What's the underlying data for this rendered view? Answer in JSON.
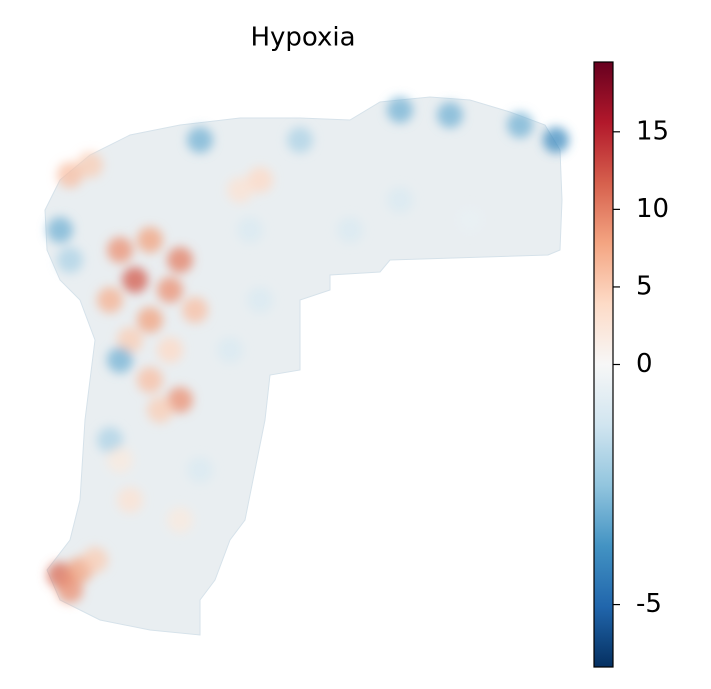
{
  "chart_data": {
    "type": "scatter",
    "title": "Hypoxia",
    "x": [
      120,
      150,
      180,
      135,
      170,
      110,
      195,
      150,
      130,
      170,
      180,
      150,
      160,
      60,
      80,
      70,
      95,
      70,
      90,
      260,
      240,
      400,
      450,
      520,
      556,
      200,
      300,
      60,
      70,
      120,
      110,
      200,
      400,
      250,
      130,
      180,
      120,
      230,
      260,
      470,
      350
    ],
    "y": [
      250,
      240,
      260,
      280,
      290,
      300,
      310,
      320,
      340,
      350,
      400,
      380,
      410,
      575,
      570,
      590,
      560,
      175,
      165,
      180,
      190,
      110,
      115,
      125,
      140,
      140,
      140,
      230,
      260,
      360,
      440,
      470,
      200,
      230,
      500,
      520,
      460,
      350,
      300,
      220,
      230
    ],
    "values": [
      9,
      8,
      10,
      12,
      9,
      7,
      6,
      8,
      5,
      4,
      9,
      6,
      5,
      11,
      8,
      9,
      5,
      6,
      5,
      4,
      3,
      -3,
      -3,
      -3,
      -4,
      -3,
      -2,
      -3,
      -2,
      -3,
      -2,
      -1,
      -1,
      -1,
      3,
      2,
      2,
      -1,
      -1,
      -0.5,
      -1
    ],
    "xlim": [
      45,
      565
    ],
    "ylim": [
      645,
      95
    ],
    "colorbar": {
      "clim": [
        -6.3,
        19.5
      ],
      "norm": "two-slope",
      "vcenter": 0,
      "ticks": [
        -5,
        0,
        5,
        10,
        15
      ],
      "colormap": [
        "#053061",
        "#2166ac",
        "#4393c3",
        "#92c5de",
        "#d1e5f0",
        "#f7f7f7",
        "#fddbc7",
        "#f4a582",
        "#d6604d",
        "#b2182b",
        "#67001f"
      ]
    }
  }
}
